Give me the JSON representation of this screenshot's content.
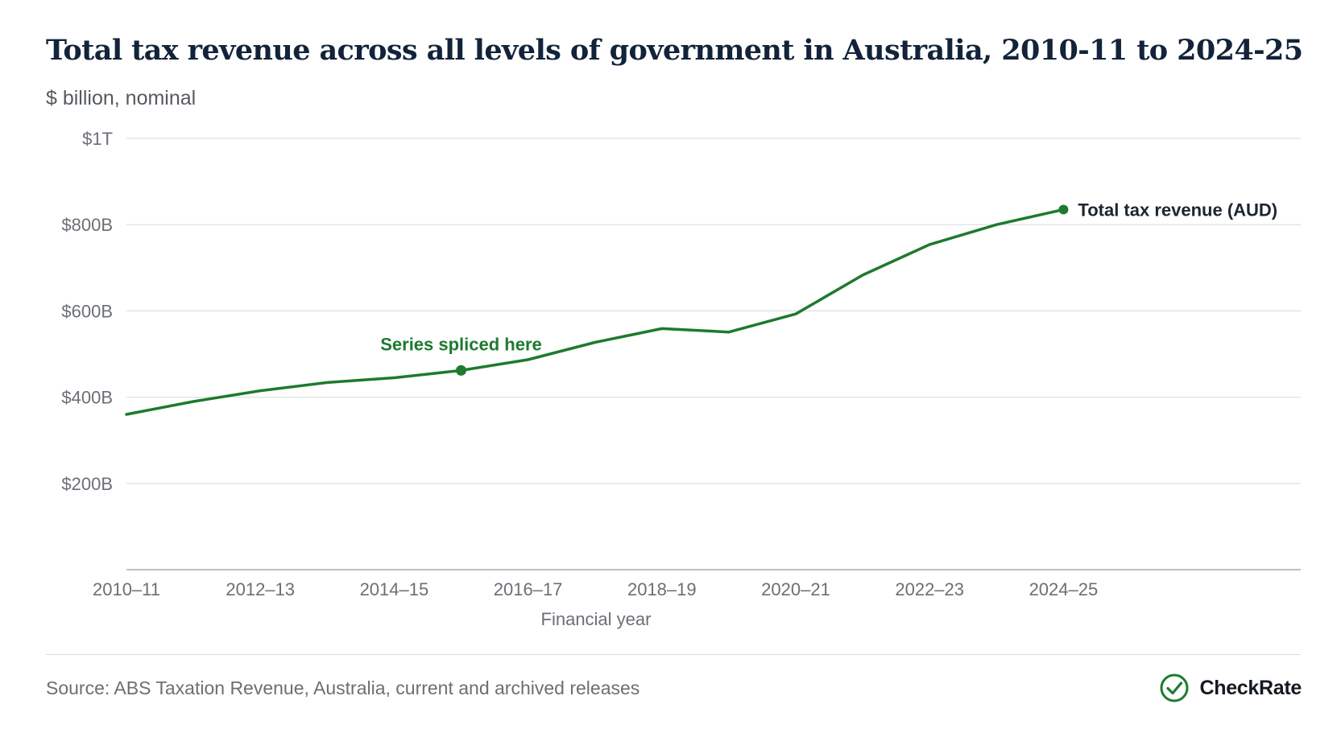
{
  "header": {
    "title": "Total tax revenue across all levels of government in Australia, 2010-11 to 2024-25",
    "subtitle": "$ billion, nominal"
  },
  "chart_data": {
    "type": "line",
    "xlabel": "Financial year",
    "ylabel": "",
    "ylim": [
      0,
      1000
    ],
    "y_ticks": [
      {
        "value": 200,
        "label": "$200B"
      },
      {
        "value": 400,
        "label": "$400B"
      },
      {
        "value": 600,
        "label": "$600B"
      },
      {
        "value": 800,
        "label": "$800B"
      },
      {
        "value": 1000,
        "label": "$1T"
      }
    ],
    "x": [
      "2010–11",
      "2011–12",
      "2012–13",
      "2013–14",
      "2014–15",
      "2015–16",
      "2016–17",
      "2017–18",
      "2018–19",
      "2019–20",
      "2020–21",
      "2021–22",
      "2022–23",
      "2023–24",
      "2024–25"
    ],
    "x_tick_labels": [
      "2010–11",
      "2012–13",
      "2014–15",
      "2016–17",
      "2018–19",
      "2020–21",
      "2022–23",
      "2024–25"
    ],
    "series": [
      {
        "name": "Total tax revenue (AUD)",
        "color": "#1e7a2e",
        "values": [
          360,
          390,
          415,
          434,
          445,
          462,
          487,
          527,
          559,
          551,
          593,
          683,
          754,
          800,
          835
        ]
      }
    ],
    "annotations": [
      {
        "text": "Series spliced here",
        "x": "2015–16",
        "value": 462
      }
    ],
    "grid": true,
    "legend": "end-of-line label"
  },
  "footer": {
    "source": "Source: ABS Taxation Revenue, Australia, current and archived releases",
    "brand": "CheckRate",
    "brand_icon": "check-circle-icon",
    "brand_color": "#1e7a2e"
  }
}
